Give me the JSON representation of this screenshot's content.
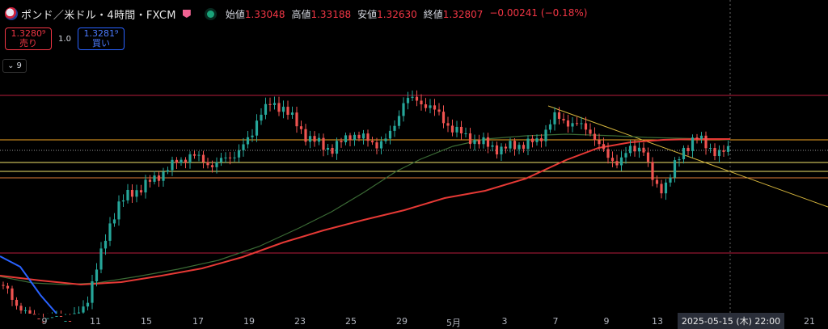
{
  "header": {
    "symbol": "ポンド／米ドル・4時間・FXCM",
    "ohlc": [
      {
        "label": "始値",
        "value": "1.33048"
      },
      {
        "label": "高値",
        "value": "1.33188"
      },
      {
        "label": "安値",
        "value": "1.32630"
      },
      {
        "label": "終値",
        "value": "1.32807"
      }
    ],
    "change": "−0.00241 (−0.18%)"
  },
  "trade": {
    "sell_price": "1.3280⁹",
    "sell_label": "売り",
    "spread": "1.0",
    "buy_price": "1.3281⁹",
    "buy_label": "買い"
  },
  "indicators_count": "9",
  "xaxis_labels": [
    "9",
    "11",
    "15",
    "17",
    "19",
    "23",
    "25",
    "29",
    "5月",
    "3",
    "7",
    "9",
    "13",
    "21"
  ],
  "crosshair_label": "2025-05-15 (木)   22:00",
  "colors": {
    "up": "#26a69a",
    "down": "#ef5350",
    "ma_blue": "#2962ff",
    "ma_red": "#e53935",
    "ma_green": "#3b6b35",
    "hline_red": "#b71c3c",
    "hline_orange": "#f5a623",
    "hline_yellow": "#f2e36b",
    "trendline": "#d4b43c"
  }
}
